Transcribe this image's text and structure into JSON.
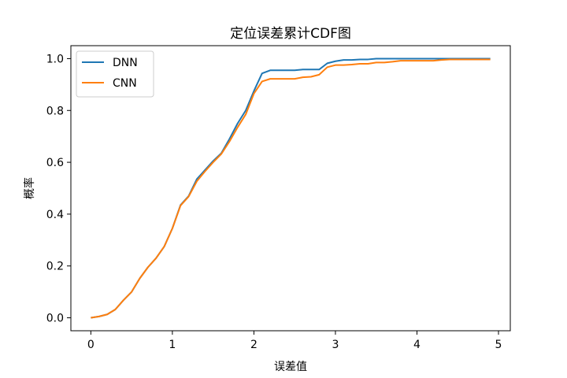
{
  "chart_data": {
    "type": "line",
    "title": "定位误差累计CDF图",
    "xlabel": "误差值",
    "ylabel": "概率",
    "xlim": [
      -0.245,
      5.145
    ],
    "ylim": [
      -0.05,
      1.05
    ],
    "xticks": [
      0,
      1,
      2,
      3,
      4,
      5
    ],
    "xtick_labels": [
      "0",
      "1",
      "2",
      "3",
      "4",
      "5"
    ],
    "yticks": [
      0.0,
      0.2,
      0.4,
      0.6,
      0.8,
      1.0
    ],
    "ytick_labels": [
      "0.0",
      "0.2",
      "0.4",
      "0.6",
      "0.8",
      "1.0"
    ],
    "grid": false,
    "legend_position": "top-left",
    "x": [
      0.0,
      0.1,
      0.2,
      0.3,
      0.4,
      0.5,
      0.6,
      0.7,
      0.8,
      0.9,
      1.0,
      1.1,
      1.2,
      1.3,
      1.4,
      1.5,
      1.6,
      1.7,
      1.8,
      1.9,
      2.0,
      2.1,
      2.2,
      2.3,
      2.4,
      2.5,
      2.6,
      2.7,
      2.8,
      2.9,
      3.0,
      3.1,
      3.2,
      3.3,
      3.4,
      3.5,
      3.6,
      3.7,
      3.8,
      3.9,
      4.0,
      4.1,
      4.2,
      4.3,
      4.4,
      4.5,
      4.6,
      4.7,
      4.8,
      4.9
    ],
    "series": [
      {
        "name": "DNN",
        "color": "#1f77b4",
        "values": [
          0.0,
          0.005,
          0.013,
          0.032,
          0.068,
          0.1,
          0.152,
          0.195,
          0.23,
          0.275,
          0.345,
          0.435,
          0.47,
          0.535,
          0.57,
          0.605,
          0.635,
          0.69,
          0.75,
          0.8,
          0.875,
          0.943,
          0.955,
          0.955,
          0.955,
          0.955,
          0.958,
          0.958,
          0.958,
          0.982,
          0.99,
          0.995,
          0.995,
          0.997,
          0.997,
          1.0,
          1.0,
          1.0,
          1.0,
          1.0,
          1.0,
          1.0,
          1.0,
          1.0,
          1.0,
          1.0,
          1.0,
          1.0,
          1.0,
          1.0
        ]
      },
      {
        "name": "CNN",
        "color": "#ff7f0e",
        "values": [
          0.0,
          0.005,
          0.013,
          0.032,
          0.068,
          0.1,
          0.152,
          0.195,
          0.23,
          0.275,
          0.345,
          0.433,
          0.468,
          0.527,
          0.565,
          0.6,
          0.632,
          0.68,
          0.735,
          0.785,
          0.865,
          0.912,
          0.922,
          0.922,
          0.922,
          0.922,
          0.928,
          0.93,
          0.938,
          0.967,
          0.975,
          0.975,
          0.977,
          0.98,
          0.98,
          0.985,
          0.985,
          0.988,
          0.992,
          0.992,
          0.992,
          0.992,
          0.992,
          0.995,
          0.997,
          0.997,
          0.997,
          0.997,
          0.997,
          0.997
        ]
      }
    ]
  }
}
